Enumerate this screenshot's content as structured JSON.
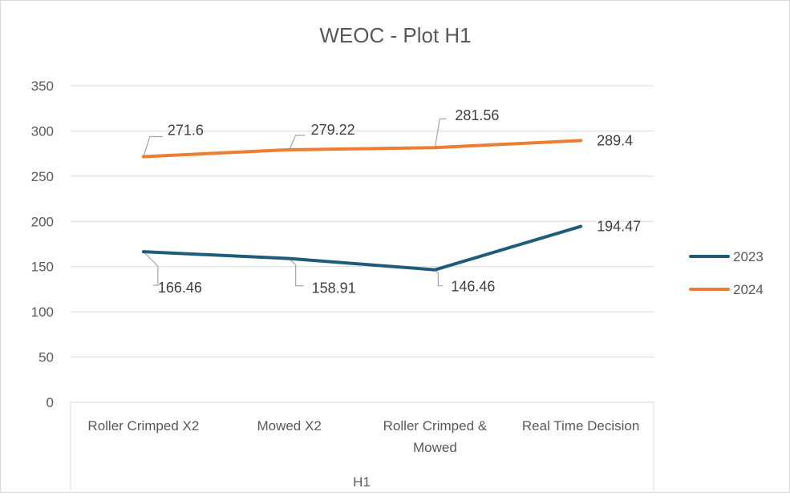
{
  "chart_data": {
    "type": "line",
    "title": "WEOC - Plot H1",
    "categories": [
      "Roller Crimped X2",
      "Mowed X2",
      "Roller Crimped & Mowed",
      "Real Time Decision"
    ],
    "category_lines": [
      [
        "Roller Crimped X2"
      ],
      [
        "Mowed X2"
      ],
      [
        "Roller Crimped &",
        "Mowed"
      ],
      [
        "Real Time Decision"
      ]
    ],
    "group_label": "H1",
    "ylim": [
      0,
      350
    ],
    "yticks": [
      0,
      50,
      100,
      150,
      200,
      250,
      300,
      350
    ],
    "grid": true,
    "legend_position": "right",
    "series": [
      {
        "name": "2023",
        "color": "#1f5c7a",
        "values": [
          166.46,
          158.91,
          146.46,
          194.47
        ],
        "labels": [
          "166.46",
          "158.91",
          "146.46",
          "194.47"
        ]
      },
      {
        "name": "2024",
        "color": "#ed7d31",
        "values": [
          271.6,
          279.22,
          281.56,
          289.4
        ],
        "labels": [
          "271.6",
          "279.22",
          "281.56",
          "289.4"
        ]
      }
    ]
  }
}
